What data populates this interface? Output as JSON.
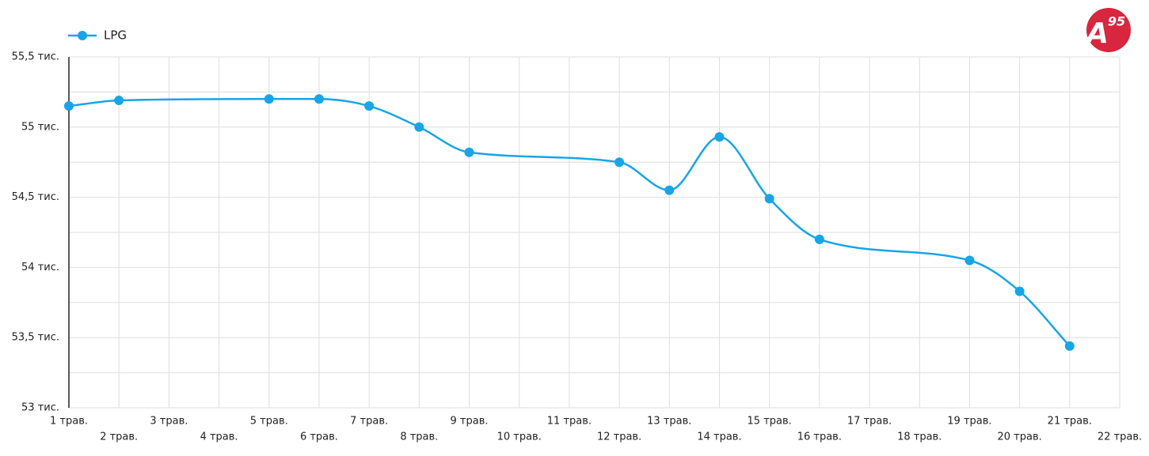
{
  "chart_data": {
    "type": "line",
    "logo": {
      "letter": "A",
      "superscript": "95"
    },
    "categories": [
      "1 трав.",
      "2 трав.",
      "3 трав.",
      "4 трав.",
      "5 трав.",
      "6 трав.",
      "7 трав.",
      "8 трав.",
      "9 трав.",
      "10 трав.",
      "11 трав.",
      "12 трав.",
      "13 трав.",
      "14 трав.",
      "15 трав.",
      "16 трав.",
      "17 трав.",
      "18 трав.",
      "19 трав.",
      "20 трав.",
      "21 трав.",
      "22 трав."
    ],
    "series": [
      {
        "name": "LPG",
        "color": "#17a5e8",
        "values": [
          55150,
          55190,
          null,
          null,
          55200,
          55200,
          55150,
          55000,
          54820,
          null,
          null,
          54750,
          54550,
          54930,
          54490,
          54200,
          null,
          null,
          54050,
          53830,
          53440,
          null
        ]
      }
    ],
    "span_gaps": true,
    "ylim": [
      53000,
      55500
    ],
    "yticks": [
      {
        "value": 53000,
        "label": "53 тис."
      },
      {
        "value": 53500,
        "label": "53,5 тис."
      },
      {
        "value": 54000,
        "label": "54 тис."
      },
      {
        "value": 54500,
        "label": "54,5 тис."
      },
      {
        "value": 55000,
        "label": "55 тис."
      },
      {
        "value": 55500,
        "label": "55,5 тис."
      }
    ],
    "minor_yticks": [
      53250,
      53750,
      54250,
      54750,
      55250
    ],
    "grid": true,
    "legend": "top-left"
  }
}
